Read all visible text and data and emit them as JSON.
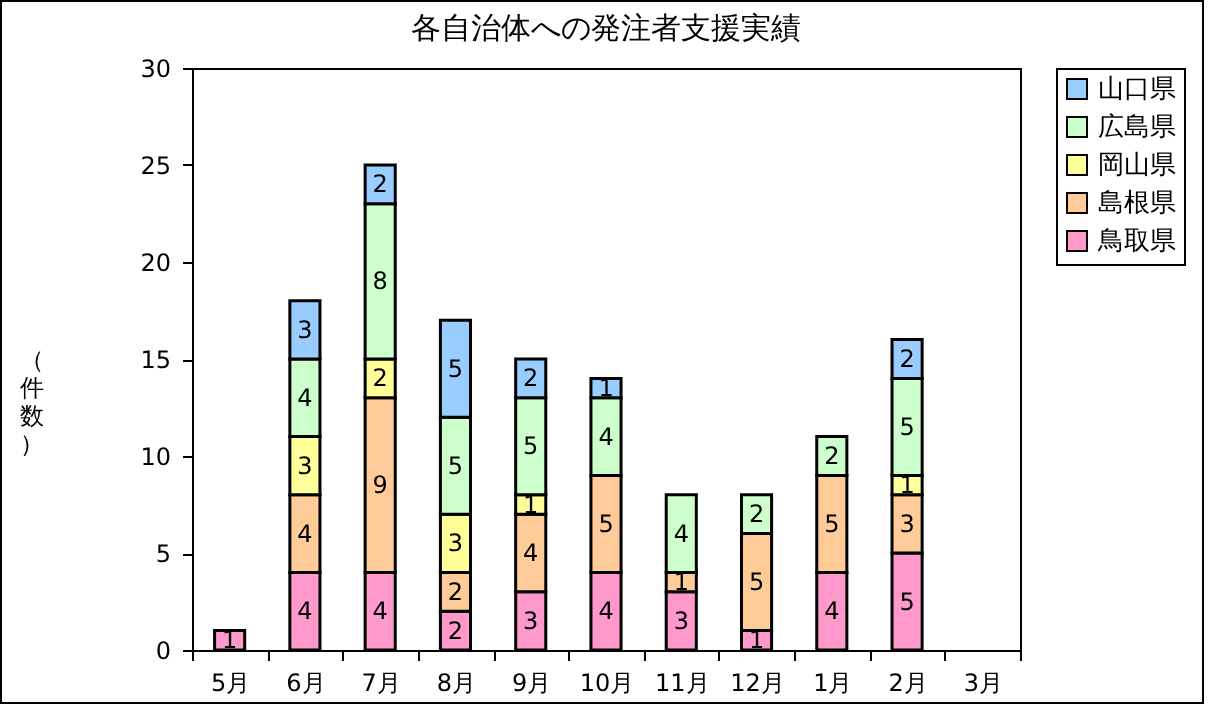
{
  "chart_data": {
    "type": "bar",
    "title": "各自治体への発注者支援実績",
    "ylabel": "（件数）",
    "stacked": true,
    "data_labels": true,
    "legend": "right",
    "grid": false,
    "categories": [
      "5月",
      "6月",
      "7月",
      "8月",
      "9月",
      "10月",
      "11月",
      "12月",
      "1月",
      "2月",
      "3月"
    ],
    "ylim": [
      0,
      30
    ],
    "yticks": [
      0,
      5,
      10,
      15,
      20,
      25,
      30
    ],
    "series": [
      {
        "name": "鳥取県",
        "color": "#ff99cc",
        "values": [
          1,
          4,
          4,
          2,
          3,
          4,
          3,
          1,
          4,
          5,
          null
        ]
      },
      {
        "name": "島根県",
        "color": "#ffcc99",
        "values": [
          null,
          4,
          9,
          2,
          4,
          5,
          1,
          5,
          5,
          3,
          null
        ]
      },
      {
        "name": "岡山県",
        "color": "#ffff99",
        "values": [
          null,
          3,
          2,
          3,
          1,
          null,
          null,
          null,
          null,
          1,
          null
        ]
      },
      {
        "name": "広島県",
        "color": "#ccffcc",
        "values": [
          null,
          4,
          8,
          5,
          5,
          4,
          4,
          2,
          2,
          5,
          null
        ]
      },
      {
        "name": "山口県",
        "color": "#99ccff",
        "values": [
          null,
          3,
          2,
          5,
          2,
          1,
          null,
          null,
          null,
          2,
          null
        ]
      }
    ]
  }
}
